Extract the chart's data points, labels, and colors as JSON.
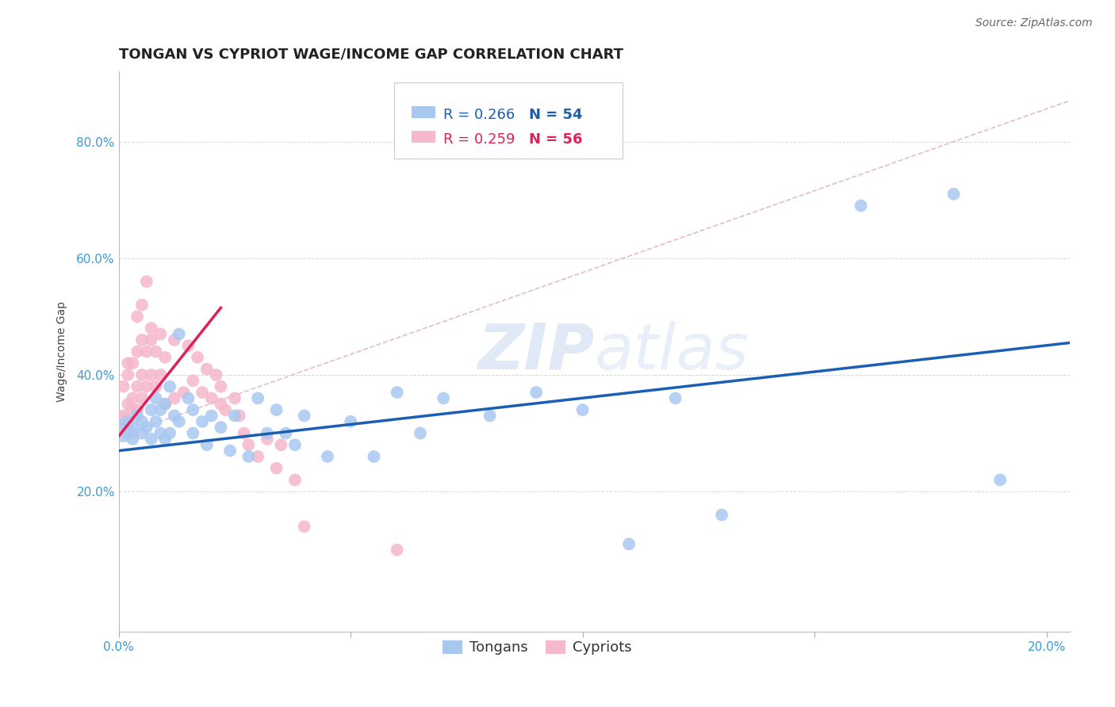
{
  "title": "TONGAN VS CYPRIOT WAGE/INCOME GAP CORRELATION CHART",
  "source": "Source: ZipAtlas.com",
  "ylabel": "Wage/Income Gap",
  "xlim": [
    0.0,
    0.205
  ],
  "ylim": [
    -0.04,
    0.92
  ],
  "xticks": [
    0.0,
    0.05,
    0.1,
    0.15,
    0.2
  ],
  "xtick_labels": [
    "0.0%",
    "",
    "",
    "",
    "20.0%"
  ],
  "ytick_positions": [
    0.2,
    0.4,
    0.6,
    0.8
  ],
  "ytick_labels": [
    "20.0%",
    "40.0%",
    "60.0%",
    "80.0%"
  ],
  "background_color": "#ffffff",
  "grid_color": "#cccccc",
  "tongan_color": "#a8c8f0",
  "cypriot_color": "#f5b8cc",
  "tongan_line_color": "#1a5fb4",
  "cypriot_line_color": "#e0205a",
  "dashed_line_color": "#d8a0b8",
  "legend_r_tongan": "R = 0.266",
  "legend_n_tongan": "N = 54",
  "legend_r_cypriot": "R = 0.259",
  "legend_n_cypriot": "N = 56",
  "tongan_label": "Tongans",
  "cypriot_label": "Cypriots",
  "tongan_scatter_x": [
    0.001,
    0.001,
    0.002,
    0.002,
    0.003,
    0.003,
    0.004,
    0.005,
    0.005,
    0.006,
    0.007,
    0.007,
    0.008,
    0.008,
    0.009,
    0.009,
    0.01,
    0.01,
    0.011,
    0.011,
    0.012,
    0.013,
    0.013,
    0.015,
    0.016,
    0.016,
    0.018,
    0.019,
    0.02,
    0.022,
    0.024,
    0.025,
    0.028,
    0.03,
    0.032,
    0.034,
    0.036,
    0.038,
    0.04,
    0.045,
    0.05,
    0.055,
    0.06,
    0.065,
    0.07,
    0.08,
    0.09,
    0.1,
    0.11,
    0.12,
    0.13,
    0.16,
    0.18,
    0.19
  ],
  "tongan_scatter_y": [
    0.315,
    0.295,
    0.32,
    0.3,
    0.31,
    0.29,
    0.33,
    0.3,
    0.32,
    0.31,
    0.34,
    0.29,
    0.32,
    0.36,
    0.3,
    0.34,
    0.35,
    0.29,
    0.3,
    0.38,
    0.33,
    0.47,
    0.32,
    0.36,
    0.3,
    0.34,
    0.32,
    0.28,
    0.33,
    0.31,
    0.27,
    0.33,
    0.26,
    0.36,
    0.3,
    0.34,
    0.3,
    0.28,
    0.33,
    0.26,
    0.32,
    0.26,
    0.37,
    0.3,
    0.36,
    0.33,
    0.37,
    0.34,
    0.11,
    0.36,
    0.16,
    0.69,
    0.71,
    0.22
  ],
  "cypriot_scatter_x": [
    0.001,
    0.001,
    0.001,
    0.001,
    0.002,
    0.002,
    0.002,
    0.002,
    0.003,
    0.003,
    0.003,
    0.003,
    0.004,
    0.004,
    0.004,
    0.004,
    0.005,
    0.005,
    0.005,
    0.005,
    0.006,
    0.006,
    0.006,
    0.007,
    0.007,
    0.007,
    0.008,
    0.008,
    0.009,
    0.009,
    0.01,
    0.01,
    0.012,
    0.012,
    0.014,
    0.015,
    0.016,
    0.017,
    0.018,
    0.019,
    0.02,
    0.021,
    0.022,
    0.022,
    0.023,
    0.025,
    0.026,
    0.027,
    0.028,
    0.03,
    0.032,
    0.034,
    0.035,
    0.038,
    0.04,
    0.06
  ],
  "cypriot_scatter_y": [
    0.315,
    0.325,
    0.33,
    0.38,
    0.32,
    0.35,
    0.4,
    0.42,
    0.3,
    0.34,
    0.36,
    0.42,
    0.34,
    0.38,
    0.44,
    0.5,
    0.36,
    0.4,
    0.46,
    0.52,
    0.38,
    0.44,
    0.56,
    0.4,
    0.46,
    0.48,
    0.38,
    0.44,
    0.4,
    0.47,
    0.35,
    0.43,
    0.36,
    0.46,
    0.37,
    0.45,
    0.39,
    0.43,
    0.37,
    0.41,
    0.36,
    0.4,
    0.35,
    0.38,
    0.34,
    0.36,
    0.33,
    0.3,
    0.28,
    0.26,
    0.29,
    0.24,
    0.28,
    0.22,
    0.14,
    0.1
  ],
  "tongan_line_x": [
    0.0,
    0.205
  ],
  "tongan_line_y": [
    0.27,
    0.455
  ],
  "cypriot_solid_line_x": [
    0.0,
    0.022
  ],
  "cypriot_solid_line_y": [
    0.295,
    0.515
  ],
  "cypriot_dashed_line_x": [
    0.0,
    0.205
  ],
  "cypriot_dashed_line_y": [
    0.295,
    0.87
  ],
  "watermark_zip": "ZIP",
  "watermark_atlas": "atlas",
  "title_fontsize": 13,
  "axis_label_fontsize": 10,
  "tick_fontsize": 11,
  "legend_fontsize": 13,
  "source_fontsize": 10
}
